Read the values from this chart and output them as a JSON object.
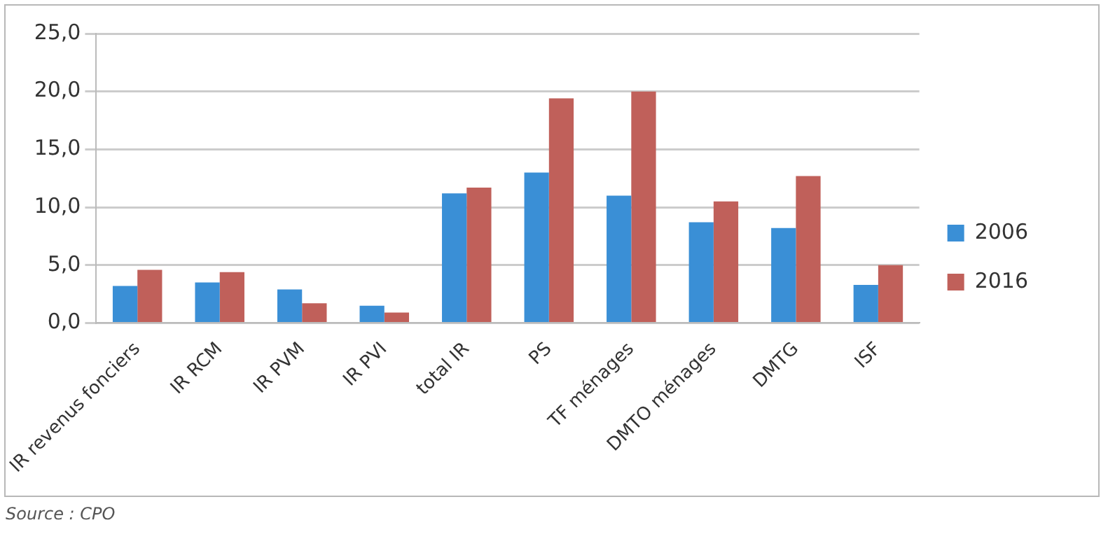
{
  "chart_data": {
    "type": "bar",
    "categories": [
      "IR revenus fonciers",
      "IR RCM",
      "IR PVM",
      "IR PVI",
      "total IR",
      "PS",
      "TF ménages",
      "DMTO ménages",
      "DMTG",
      "ISF"
    ],
    "series": [
      {
        "name": "2006",
        "color": "#3a8fd6",
        "values": [
          3.2,
          3.5,
          2.9,
          1.5,
          11.2,
          13.0,
          11.0,
          8.7,
          8.2,
          3.3
        ]
      },
      {
        "name": "2016",
        "color": "#c0605a",
        "values": [
          4.6,
          4.4,
          1.7,
          0.9,
          11.7,
          19.4,
          20.0,
          10.5,
          12.7,
          5.0
        ]
      }
    ],
    "ylim": [
      0,
      25
    ],
    "yticks": [
      {
        "value": 0,
        "label": "0,0"
      },
      {
        "value": 5,
        "label": "5,0"
      },
      {
        "value": 10,
        "label": "10,0"
      },
      {
        "value": 15,
        "label": "15,0"
      },
      {
        "value": 20,
        "label": "20,0"
      },
      {
        "value": 25,
        "label": "25,0"
      }
    ],
    "grid": "y",
    "legend": "right",
    "annotations": [
      "Source : CPO"
    ]
  }
}
